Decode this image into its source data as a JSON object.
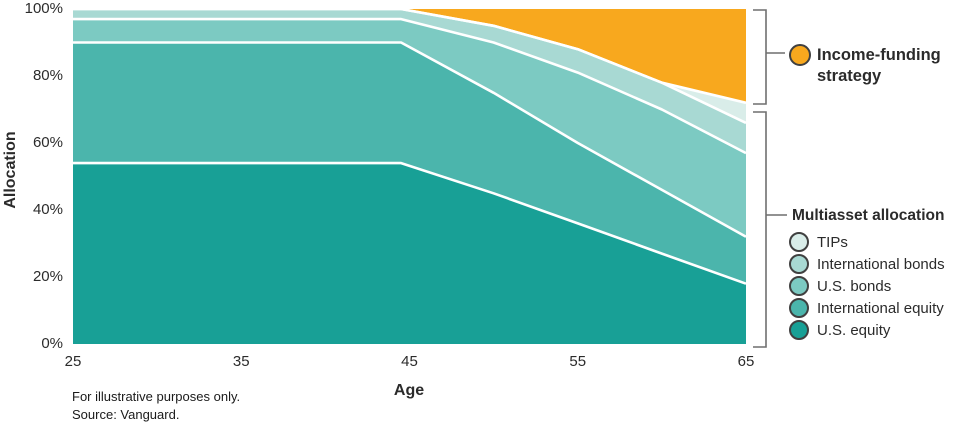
{
  "chart_data": {
    "type": "area",
    "stacked": true,
    "title": "",
    "xlabel": "Age",
    "ylabel": "Allocation",
    "x_range": [
      25,
      65
    ],
    "ylim": [
      0,
      100
    ],
    "y_unit": "percent",
    "grid": false,
    "legend_position": "right",
    "band_separator_color": "#FFFFFF",
    "x": [
      25,
      44.5,
      50,
      55,
      60,
      65
    ],
    "series": [
      {
        "name": "us-equity",
        "label": "U.S. equity",
        "color": "#18A096",
        "values": [
          54,
          54,
          45,
          36,
          27,
          18
        ]
      },
      {
        "name": "international-equity",
        "label": "International equity",
        "color": "#4BB5AC",
        "values": [
          36,
          36,
          30,
          24,
          19,
          14
        ]
      },
      {
        "name": "us-bonds",
        "label": "U.S. bonds",
        "color": "#7CCAC2",
        "values": [
          7,
          7,
          15,
          21,
          24,
          25
        ]
      },
      {
        "name": "international-bonds",
        "label": "International bonds",
        "color": "#A8D9D3",
        "values": [
          3,
          3,
          5,
          7,
          8,
          9
        ]
      },
      {
        "name": "tips",
        "label": "TIPs",
        "color": "#D9EDE9",
        "values": [
          0,
          0,
          0,
          0,
          0,
          6
        ]
      },
      {
        "name": "income-funding-strategy",
        "label": "Income-funding strategy",
        "color": "#F8A81E",
        "values": [
          0,
          0,
          5,
          12,
          22,
          28
        ]
      }
    ],
    "x_ticks": [
      {
        "value": 25,
        "label": "25"
      },
      {
        "value": 35,
        "label": "35"
      },
      {
        "value": 45,
        "label": "45"
      },
      {
        "value": 55,
        "label": "55"
      },
      {
        "value": 65,
        "label": "65"
      }
    ],
    "y_ticks": [
      {
        "value": 0,
        "label": "0%"
      },
      {
        "value": 20,
        "label": "20%"
      },
      {
        "value": 40,
        "label": "40%"
      },
      {
        "value": 60,
        "label": "60%"
      },
      {
        "value": 80,
        "label": "80%"
      },
      {
        "value": 100,
        "label": "100%"
      }
    ],
    "annotations": [
      "Income-funding strategy",
      "Multiasset allocation"
    ]
  },
  "axes": {
    "y_title": "Allocation",
    "x_title": "Age"
  },
  "legend": {
    "income": {
      "line1": "Income-funding",
      "line2": "strategy",
      "color": "#F8A81E"
    },
    "multiasset": {
      "header": "Multiasset allocation",
      "items": [
        {
          "name": "tips",
          "label": "TIPs",
          "color": "#D9EDE9"
        },
        {
          "name": "international-bonds",
          "label": "International bonds",
          "color": "#A8D9D3"
        },
        {
          "name": "us-bonds",
          "label": "U.S. bonds",
          "color": "#7CCAC2"
        },
        {
          "name": "international-equity",
          "label": "International equity",
          "color": "#4BB5AC"
        },
        {
          "name": "us-equity",
          "label": "U.S. equity",
          "color": "#18A096"
        }
      ]
    }
  },
  "footnotes": {
    "line1": "For illustrative purposes only.",
    "line2": "Source: Vanguard."
  }
}
